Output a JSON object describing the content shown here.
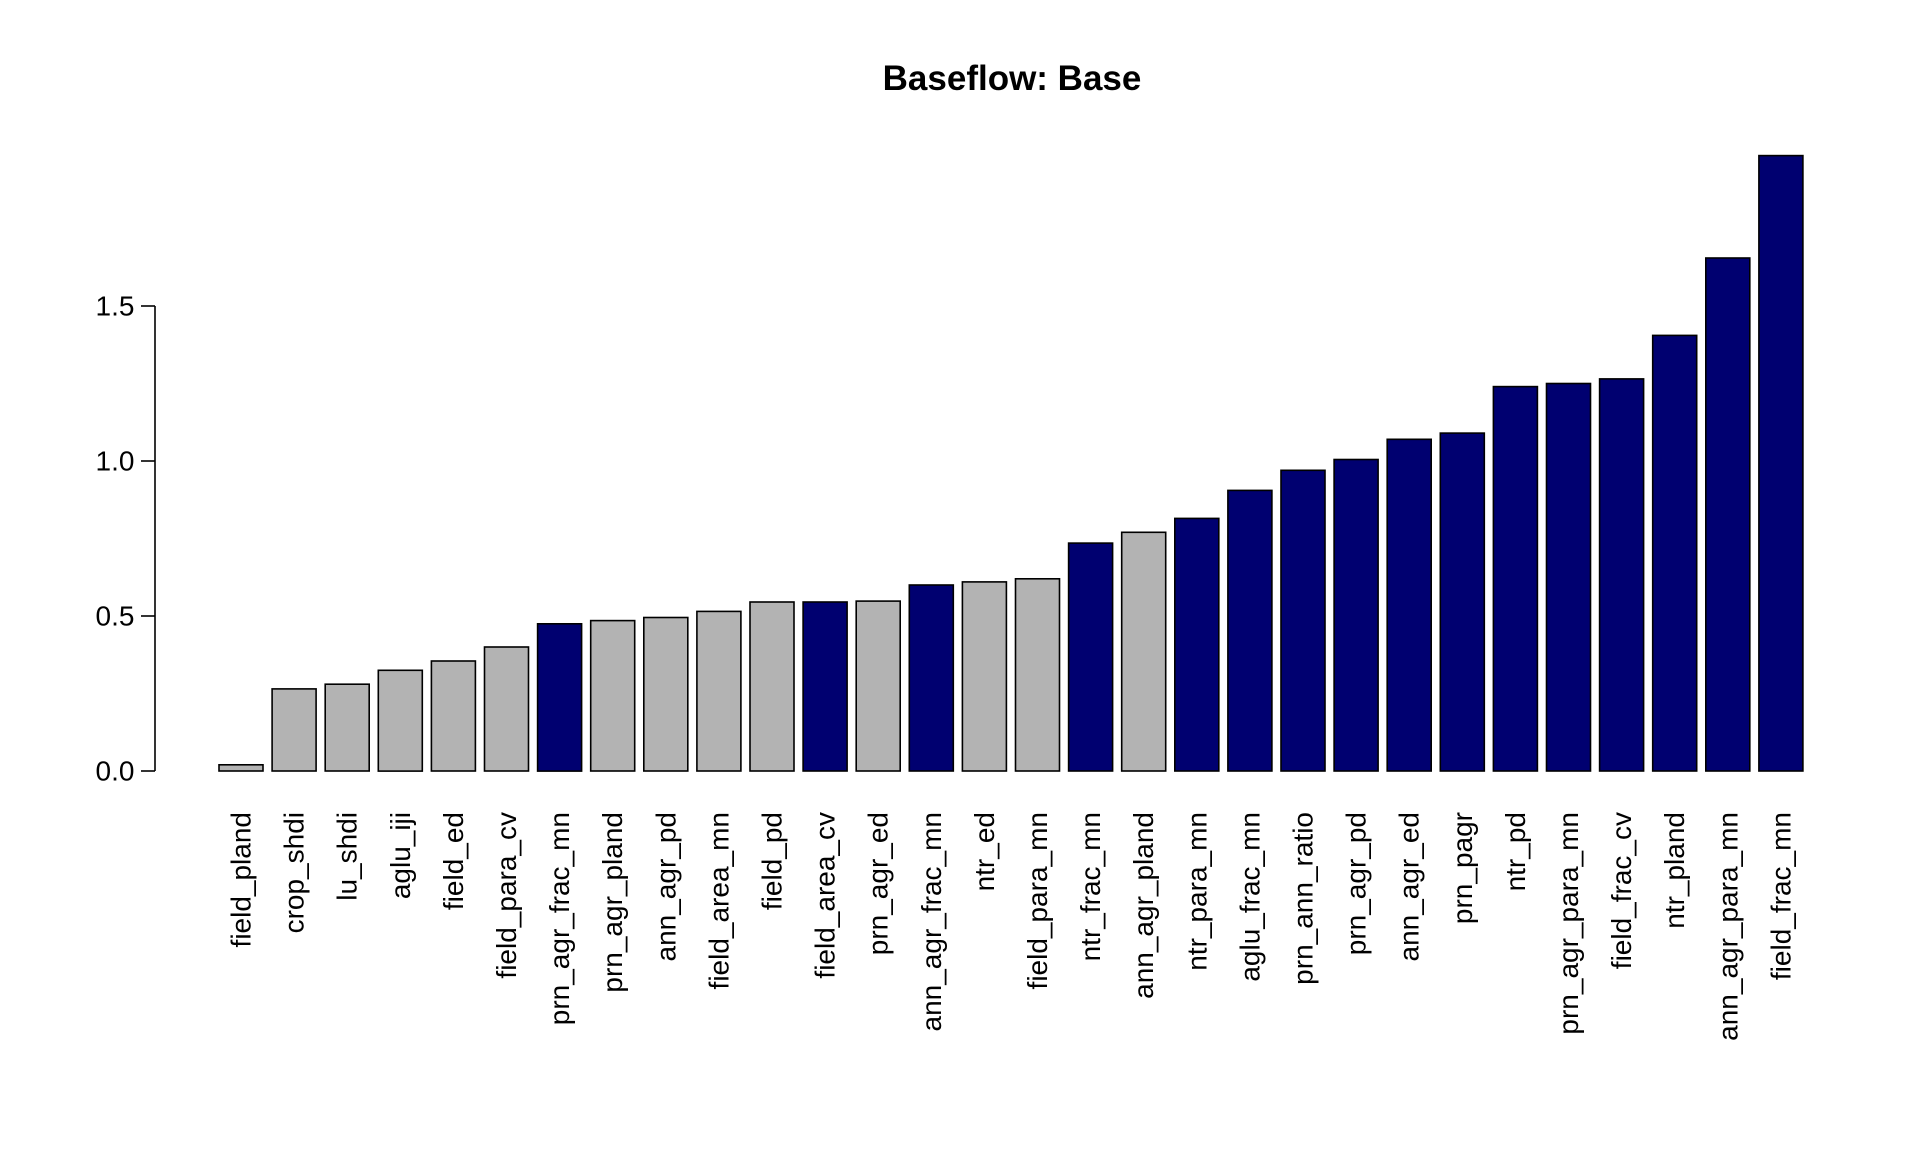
{
  "chart_data": {
    "type": "bar",
    "title": "Baseflow: Base",
    "xlabel": "",
    "ylabel": "",
    "ylim": [
      0,
      2.0
    ],
    "yticks": [
      0.0,
      0.5,
      1.0,
      1.5
    ],
    "ytick_labels": [
      "0.0",
      "0.5",
      "1.0",
      "1.5"
    ],
    "grid": false,
    "colors": {
      "gray": "#b3b3b3",
      "navy": "#000070"
    },
    "categories": [
      "field_pland",
      "crop_shdi",
      "lu_shdi",
      "aglu_iji",
      "field_ed",
      "field_para_cv",
      "prn_agr_frac_mn",
      "prn_agr_pland",
      "ann_agr_pd",
      "field_area_mn",
      "field_pd",
      "field_area_cv",
      "prn_agr_ed",
      "ann_agr_frac_mn",
      "ntr_ed",
      "field_para_mn",
      "ntr_frac_mn",
      "ann_agr_pland",
      "ntr_para_mn",
      "aglu_frac_mn",
      "prn_ann_ratio",
      "prn_agr_pd",
      "ann_agr_ed",
      "prn_pagr",
      "ntr_pd",
      "prn_agr_para_mn",
      "field_frac_cv",
      "ntr_pland",
      "ann_agr_para_mn",
      "field_frac_mn"
    ],
    "values": [
      0.02,
      0.265,
      0.28,
      0.325,
      0.355,
      0.4,
      0.475,
      0.485,
      0.495,
      0.515,
      0.545,
      0.545,
      0.548,
      0.6,
      0.61,
      0.62,
      0.735,
      0.77,
      0.815,
      0.905,
      0.97,
      1.005,
      1.07,
      1.09,
      1.24,
      1.25,
      1.265,
      1.405,
      1.655,
      1.985
    ],
    "bar_colors": [
      "gray",
      "gray",
      "gray",
      "gray",
      "gray",
      "gray",
      "navy",
      "gray",
      "gray",
      "gray",
      "gray",
      "navy",
      "gray",
      "navy",
      "gray",
      "gray",
      "navy",
      "gray",
      "navy",
      "navy",
      "navy",
      "navy",
      "navy",
      "navy",
      "navy",
      "navy",
      "navy",
      "navy",
      "navy",
      "navy"
    ]
  }
}
